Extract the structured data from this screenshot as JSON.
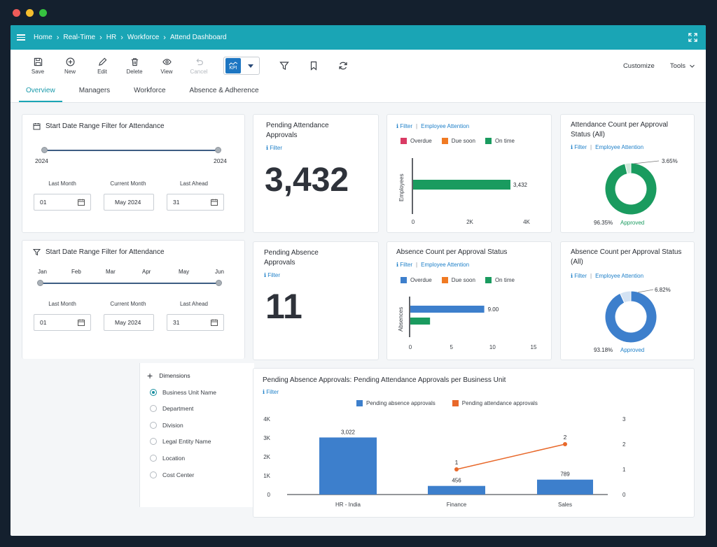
{
  "window": {
    "dot_colors": [
      "#ee5b59",
      "#f5be2e",
      "#36c240"
    ]
  },
  "breadcrumb": [
    "Home",
    "Real-Time",
    "HR",
    "Workforce",
    "Attend Dashboard"
  ],
  "toolbar": {
    "save": "Save",
    "new": "New",
    "edit": "Edit",
    "delete": "Delete",
    "view": "View",
    "cancel": "Cancel",
    "kpi": "KPI",
    "customize": "Customize",
    "tools": "Tools"
  },
  "tabs": [
    "Overview",
    "Managers",
    "Workforce",
    "Absence & Adherence"
  ],
  "filter1": {
    "title": "Start Date Range Filter for Attendance",
    "range_start": "2024",
    "range_end": "2024",
    "labels": [
      "Last Month",
      "Current Month",
      "Last Ahead"
    ],
    "values": [
      "01",
      "May 2024",
      "31"
    ]
  },
  "filter2": {
    "title": "Start Date Range Filter for Attendance",
    "months": [
      "Jan",
      "Feb",
      "Mar",
      "Apr",
      "May",
      "Jun"
    ],
    "labels": [
      "Last Month",
      "Current Month",
      "Last Ahead"
    ],
    "values": [
      "01",
      "May 2024",
      "31"
    ]
  },
  "pending_attendance": {
    "title": "Pending Attendance Approvals",
    "filter": "Filter",
    "value": "3,432"
  },
  "pending_absence": {
    "title": "Pending Absence Approvals",
    "filter": "Filter",
    "value": "11"
  },
  "links": {
    "filter": "Filter",
    "attention": "Employee Attention"
  },
  "legend_status": [
    "Overdue",
    "Due soon",
    "On time"
  ],
  "colors": {
    "overdue_red": "#d93a64",
    "due_soon": "#f07a23",
    "on_time": "#1a9b5f",
    "blue": "#3d7fcc",
    "teal": "#1aa5b5",
    "orange_line": "#e8682a"
  },
  "dimensions": {
    "title": "Dimensions",
    "items": [
      "Business Unit Name",
      "Department",
      "Division",
      "Legal Entity Name",
      "Location",
      "Cost Center"
    ],
    "selected": 0
  },
  "chart_data": [
    {
      "type": "bar",
      "orientation": "horizontal",
      "legend": [
        "Overdue",
        "Due soon",
        "On time"
      ],
      "ylabel": "Employees",
      "series": [
        {
          "name": "On time",
          "values": [
            3432
          ]
        }
      ],
      "data_labels": [
        "3,432"
      ],
      "xticks": [
        "0",
        "2K",
        "4K"
      ],
      "xlim": [
        0,
        4000
      ]
    },
    {
      "type": "pie",
      "title": "Attendance Count per Approval Status (All)",
      "slices": [
        {
          "label": "Approved",
          "value": 96.35
        },
        {
          "label": "",
          "value": 3.65
        }
      ],
      "labels": [
        "96.35%",
        "Approved",
        "3.65%"
      ]
    },
    {
      "type": "bar",
      "orientation": "horizontal",
      "title": "Absence Count per Approval Status",
      "legend": [
        "Overdue",
        "Due soon",
        "On time"
      ],
      "ylabel": "Absences",
      "series": [
        {
          "name": "Overdue",
          "values": [
            9
          ]
        },
        {
          "name": "On time",
          "values": [
            2.4
          ]
        }
      ],
      "data_labels": [
        "9.00"
      ],
      "xticks": [
        "0",
        "5",
        "10",
        "15"
      ],
      "xlim": [
        0,
        15
      ]
    },
    {
      "type": "pie",
      "title": "Absence Count per Approval Status (All)",
      "slices": [
        {
          "label": "Approved",
          "value": 93.18
        },
        {
          "label": "",
          "value": 6.82
        }
      ],
      "labels": [
        "93.18%",
        "Approved",
        "6.82%"
      ]
    },
    {
      "type": "bar",
      "title": "Pending Absence Approvals: Pending Attendance Approvals per Business Unit",
      "filter": "Filter",
      "categories": [
        "HR - India",
        "Finance",
        "Sales"
      ],
      "series": [
        {
          "name": "Pending absence approvals",
          "values": [
            3022,
            456,
            789
          ],
          "labels": [
            "3,022",
            "456",
            "789"
          ]
        },
        {
          "name": "Pending attendance approvals",
          "values": [
            null,
            1,
            2
          ],
          "labels": [
            "",
            "1",
            "2"
          ]
        }
      ],
      "yticks_left": [
        "0",
        "1K",
        "2K",
        "3K",
        "4K"
      ],
      "ylim_left": [
        0,
        4000
      ],
      "yticks_right": [
        "0",
        "1",
        "2",
        "3"
      ],
      "ylim_right": [
        0,
        3
      ]
    }
  ]
}
